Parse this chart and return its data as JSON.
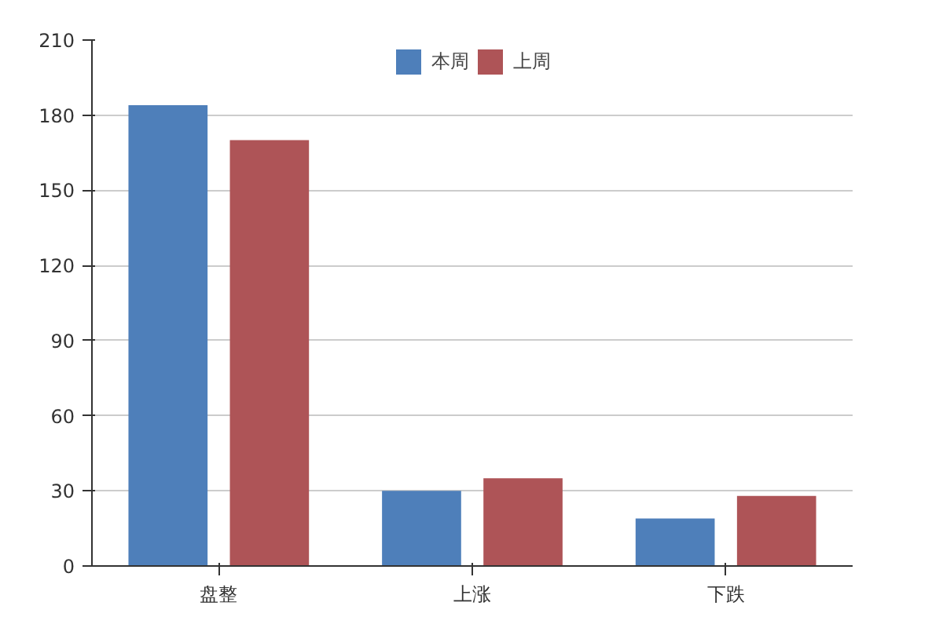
{
  "chart_data": {
    "type": "bar",
    "categories": [
      "盘整",
      "上涨",
      "下跌"
    ],
    "series": [
      {
        "name": "本周",
        "color": "#4e7fba",
        "values": [
          184,
          30,
          19
        ]
      },
      {
        "name": "上周",
        "color": "#ae5457",
        "values": [
          170,
          35,
          28
        ]
      }
    ],
    "ylim": [
      0,
      210
    ],
    "yticks": [
      0,
      30,
      60,
      90,
      120,
      150,
      180,
      210
    ],
    "grid": "y",
    "legend": "top"
  }
}
